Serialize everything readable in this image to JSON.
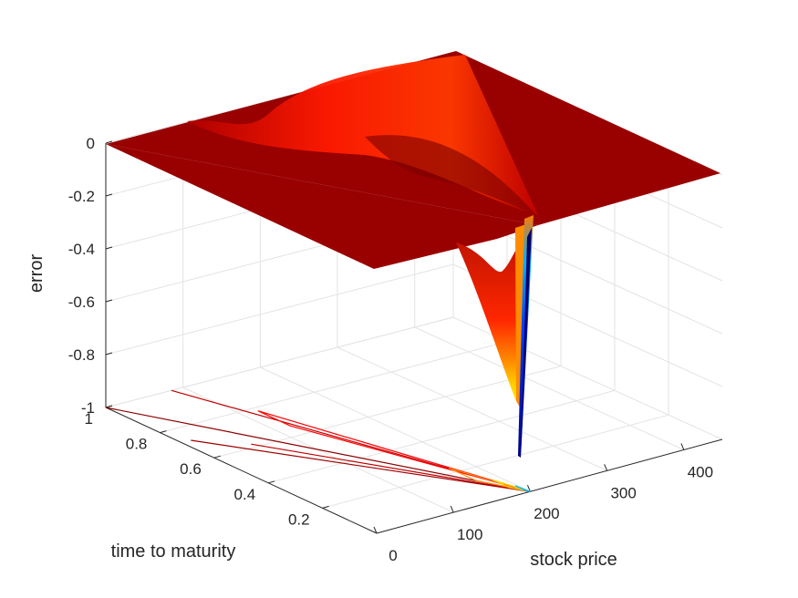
{
  "chart_data": {
    "type": "surface3d",
    "title": "",
    "xlabel": "stock price",
    "ylabel": "time to maturity",
    "zlabel": "error",
    "xlim": [
      0,
      450
    ],
    "ylim": [
      0,
      1
    ],
    "zlim": [
      -1,
      0
    ],
    "x_ticks": [
      "0",
      "100",
      "200",
      "300",
      "400"
    ],
    "y_ticks": [
      "0.2",
      "0.4",
      "0.6",
      "0.8",
      "1"
    ],
    "z_ticks": [
      "0",
      "-0.2",
      "-0.4",
      "-0.6",
      "-0.8",
      "-1"
    ],
    "grid": true,
    "strike_price": 200,
    "surface_description_values": {
      "flat_level": 0,
      "min_error": -0.95,
      "min_at_stock_price": 200,
      "min_at_time_to_maturity": 0
    },
    "colormap": [
      "#00008f",
      "#0000ff",
      "#00ffff",
      "#ffff00",
      "#ff8000",
      "#ff0000",
      "#800000"
    ]
  }
}
